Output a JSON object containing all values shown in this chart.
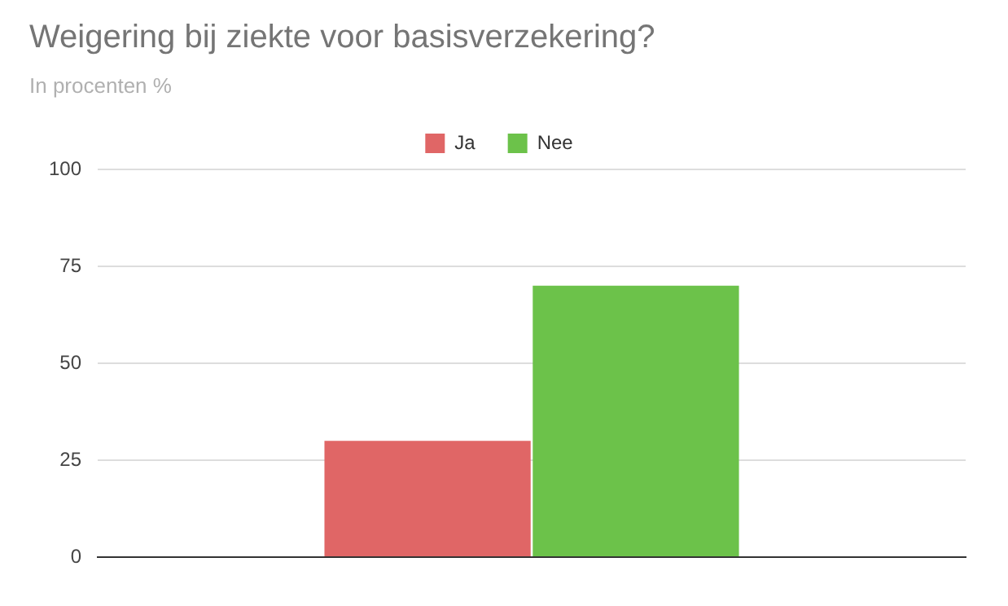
{
  "chart_data": {
    "type": "bar",
    "title": "Weigering bij ziekte voor basisverzekering?",
    "subtitle": "In procenten %",
    "categories": [
      null
    ],
    "series": [
      {
        "name": "Ja",
        "color": "#e06666",
        "values": [
          30
        ]
      },
      {
        "name": "Nee",
        "color": "#6cc24a",
        "values": [
          70
        ]
      }
    ],
    "ylim": [
      0,
      100
    ],
    "yticks": [
      0,
      25,
      50,
      75,
      100
    ],
    "grid": "y",
    "legend": "top"
  }
}
